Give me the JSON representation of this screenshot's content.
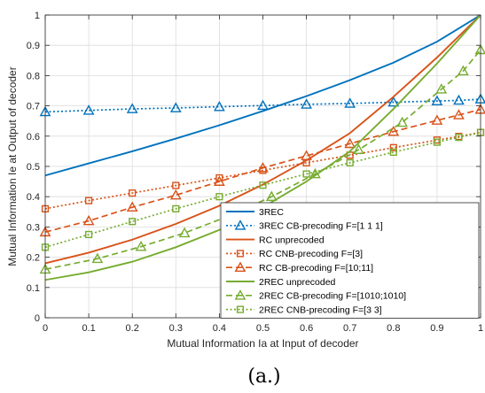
{
  "chart_data": {
    "type": "line",
    "xlabel": "Mutual Information Ia at Input of decoder",
    "ylabel": "Mutual Information Ie at Output of decoder",
    "caption": "(a.)",
    "xlim": [
      0,
      1
    ],
    "ylim": [
      0,
      1
    ],
    "xticks": [
      0,
      0.1,
      0.2,
      0.3,
      0.4,
      0.5,
      0.6,
      0.7,
      0.8,
      0.9,
      1
    ],
    "yticks": [
      0,
      0.1,
      0.2,
      0.3,
      0.4,
      0.5,
      0.6,
      0.7,
      0.8,
      0.9,
      1
    ],
    "xtick_labels": [
      "0",
      "0.1",
      "0.2",
      "0.3",
      "0.4",
      "0.5",
      "0.6",
      "0.7",
      "0.8",
      "0.9",
      "1"
    ],
    "ytick_labels": [
      "0",
      "0.1",
      "0.2",
      "0.3",
      "0.4",
      "0.5",
      "0.6",
      "0.7",
      "0.8",
      "0.9",
      "1"
    ],
    "grid": true,
    "legend_position": "bottom-right",
    "series": [
      {
        "name": "3REC",
        "color": "#0072BD",
        "dash": "solid",
        "marker": "none",
        "x": [
          0,
          0.1,
          0.2,
          0.3,
          0.4,
          0.5,
          0.6,
          0.7,
          0.8,
          0.9,
          1
        ],
        "y": [
          0.47,
          0.51,
          0.55,
          0.592,
          0.636,
          0.683,
          0.732,
          0.785,
          0.843,
          0.912,
          1.0
        ]
      },
      {
        "name": "3REC CB-precoding F=[1 1 1]",
        "color": "#0072BD",
        "dash": "dotted",
        "marker": "triangle",
        "x": [
          0,
          0.1,
          0.2,
          0.3,
          0.4,
          0.5,
          0.6,
          0.7,
          0.8,
          0.9,
          0.95,
          1
        ],
        "y": [
          0.68,
          0.685,
          0.69,
          0.693,
          0.697,
          0.701,
          0.705,
          0.708,
          0.712,
          0.716,
          0.718,
          0.722
        ]
      },
      {
        "name": "RC unprecoded",
        "color": "#D95319",
        "dash": "solid",
        "marker": "none",
        "x": [
          0,
          0.1,
          0.2,
          0.3,
          0.4,
          0.5,
          0.6,
          0.7,
          0.8,
          0.9,
          1
        ],
        "y": [
          0.18,
          0.215,
          0.258,
          0.31,
          0.37,
          0.44,
          0.52,
          0.61,
          0.73,
          0.86,
          1.0
        ]
      },
      {
        "name": "RC CNB-precoding F=[3]",
        "color": "#D95319",
        "dash": "dotted",
        "marker": "square",
        "x": [
          0,
          0.1,
          0.2,
          0.3,
          0.4,
          0.5,
          0.6,
          0.7,
          0.8,
          0.9,
          0.95,
          1
        ],
        "y": [
          0.36,
          0.387,
          0.412,
          0.437,
          0.462,
          0.487,
          0.512,
          0.537,
          0.562,
          0.587,
          0.599,
          0.612
        ]
      },
      {
        "name": "RC CB-precoding F=[10;11]",
        "color": "#D95319",
        "dash": "dashed",
        "marker": "triangle",
        "x": [
          0,
          0.1,
          0.2,
          0.3,
          0.4,
          0.5,
          0.6,
          0.7,
          0.8,
          0.9,
          0.95,
          1
        ],
        "y": [
          0.283,
          0.32,
          0.365,
          0.405,
          0.45,
          0.495,
          0.535,
          0.575,
          0.615,
          0.652,
          0.67,
          0.688
        ]
      },
      {
        "name": "2REC unprecoded",
        "color": "#77AC30",
        "dash": "solid",
        "marker": "none",
        "x": [
          0,
          0.1,
          0.2,
          0.3,
          0.4,
          0.5,
          0.6,
          0.7,
          0.8,
          0.9,
          1
        ],
        "y": [
          0.125,
          0.15,
          0.185,
          0.233,
          0.29,
          0.365,
          0.45,
          0.55,
          0.69,
          0.84,
          1.0
        ]
      },
      {
        "name": "2REC CB-precoding F=[1010;1010]",
        "color": "#77AC30",
        "dash": "dashed",
        "marker": "triangle",
        "x": [
          0,
          0.12,
          0.22,
          0.32,
          0.42,
          0.52,
          0.62,
          0.72,
          0.82,
          0.91,
          0.96,
          1
        ],
        "y": [
          0.16,
          0.195,
          0.235,
          0.28,
          0.335,
          0.4,
          0.475,
          0.555,
          0.645,
          0.755,
          0.815,
          0.885
        ]
      },
      {
        "name": "2REC CNB-precoding F=[3 3]",
        "color": "#77AC30",
        "dash": "dotted",
        "marker": "square",
        "x": [
          0,
          0.1,
          0.2,
          0.3,
          0.4,
          0.5,
          0.6,
          0.7,
          0.8,
          0.9,
          0.95,
          1
        ],
        "y": [
          0.233,
          0.275,
          0.318,
          0.36,
          0.4,
          0.438,
          0.475,
          0.512,
          0.547,
          0.58,
          0.596,
          0.612
        ]
      }
    ]
  }
}
